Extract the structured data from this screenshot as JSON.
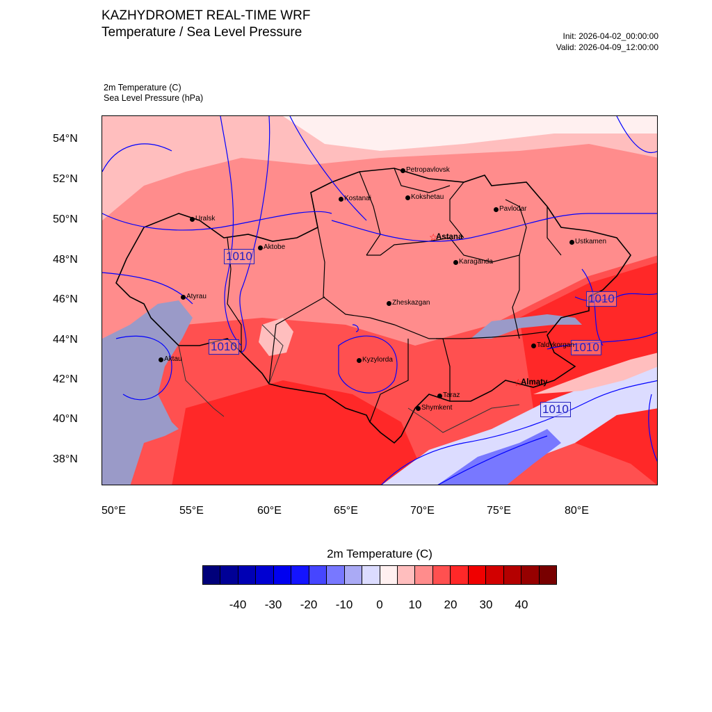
{
  "header": {
    "title": "KAZHYDROMET REAL-TIME WRF",
    "subtitle": "Temperature / Sea Level Pressure",
    "init": "Init: 2026-04-02_00:00:00",
    "valid": "Valid: 2026-04-09_12:00:00"
  },
  "fields": {
    "temp": "2m Temperature   (C)",
    "slp": "Sea Level Pressure   (hPa)"
  },
  "axes": {
    "lat": [
      "54°N",
      "52°N",
      "50°N",
      "48°N",
      "46°N",
      "44°N",
      "42°N",
      "40°N",
      "38°N"
    ],
    "lon": [
      "50°E",
      "55°E",
      "60°E",
      "65°E",
      "70°E",
      "75°E",
      "80°E"
    ]
  },
  "cities": [
    {
      "name": "Petropavlovsk",
      "marker": "dot"
    },
    {
      "name": "Kostanai",
      "marker": "dot"
    },
    {
      "name": "Kokshetau",
      "marker": "dot"
    },
    {
      "name": "Pavlodar",
      "marker": "dot"
    },
    {
      "name": "Uralsk",
      "marker": "dot"
    },
    {
      "name": "Aktobe",
      "marker": "dot"
    },
    {
      "name": "Astana",
      "marker": "star"
    },
    {
      "name": "Ustkamen",
      "marker": "dot"
    },
    {
      "name": "Karaganda",
      "marker": "dot"
    },
    {
      "name": "Atyrau",
      "marker": "dot"
    },
    {
      "name": "Zheskazgan",
      "marker": "dot"
    },
    {
      "name": "Taldykorgan",
      "marker": "dot"
    },
    {
      "name": "Aktau",
      "marker": "dot"
    },
    {
      "name": "Kyzylorda",
      "marker": "dot"
    },
    {
      "name": "Almaty",
      "marker": "star"
    },
    {
      "name": "Taraz",
      "marker": "dot"
    },
    {
      "name": "Shymkent",
      "marker": "dot"
    }
  ],
  "isobar_label": "1010",
  "colorbar": {
    "title": "2m Temperature  (C)",
    "colors": [
      "#00007a",
      "#000096",
      "#0000b4",
      "#0000d2",
      "#0000f0",
      "#1414ff",
      "#4646ff",
      "#7878ff",
      "#aaaaf5",
      "#dcdcff",
      "#fff0f0",
      "#ffbebe",
      "#ff8c8c",
      "#ff5050",
      "#ff2828",
      "#f00000",
      "#d20000",
      "#b40000",
      "#960000",
      "#780000"
    ],
    "labels": [
      "-40",
      "-30",
      "-20",
      "-10",
      "0",
      "10",
      "20",
      "30",
      "40"
    ]
  },
  "colors": {
    "isobar": "#0000ff",
    "border": "#000000",
    "city_star": "#ff0000",
    "water": "#9a9ac8"
  }
}
